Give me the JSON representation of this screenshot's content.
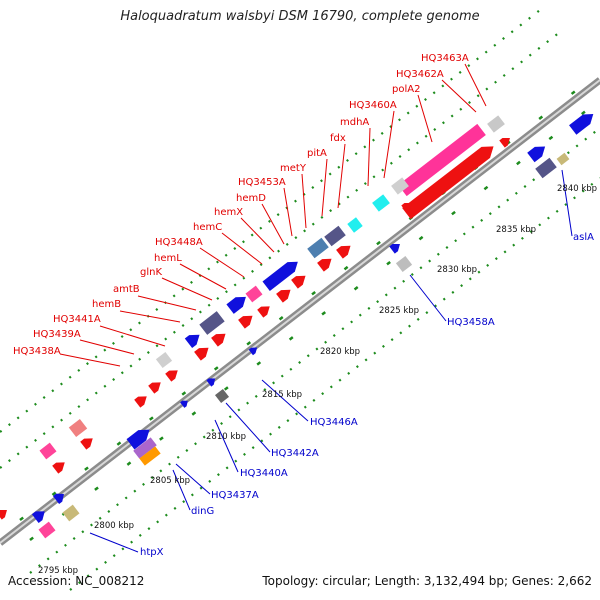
{
  "title": "Haloquadratum walsbyi DSM 16790, complete genome",
  "footer": {
    "accession": "Accession: NC_008212",
    "summary": "Topology: circular; Length: 3,132,494 bp; Genes: 2,662"
  },
  "colors": {
    "backbone": "#8c8c8c",
    "label_forward": "#e10000",
    "label_reverse": "#0000cc",
    "tick_dots": "#1e8c1e"
  },
  "tick_labels": [
    "2795 kbp",
    "2800 kbp",
    "2805 kbp",
    "2810 kbp",
    "2815 kbp",
    "2820 kbp",
    "2825 kbp",
    "2830 kbp",
    "2835 kbp",
    "2840 kbp"
  ],
  "forward_labels": [
    "HQ3438A",
    "HQ3439A",
    "HQ3441A",
    "hemB",
    "amtB",
    "glnK",
    "hemL",
    "HQ3448A",
    "hemC",
    "hemX",
    "hemD",
    "HQ3453A",
    "metY",
    "pitA",
    "fdx",
    "mdhA",
    "HQ3460A",
    "polA2",
    "HQ3462A",
    "HQ3463A"
  ],
  "reverse_labels": [
    "htpX",
    "dinG",
    "HQ3437A",
    "HQ3440A",
    "HQ3442A",
    "HQ3446A",
    "HQ3458A",
    "aslA"
  ]
}
